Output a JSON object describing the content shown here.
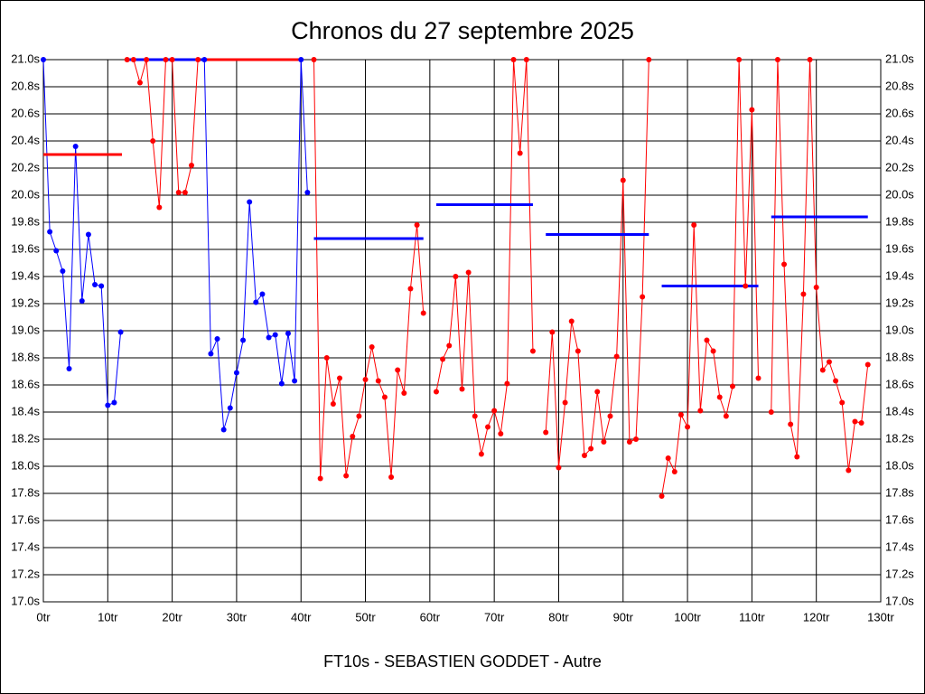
{
  "chart_data": {
    "type": "line",
    "title": "Chronos du 27 septembre 2025",
    "xlabel": "FT10s - SEBASTIEN GODDET - Autre",
    "xlim": [
      0,
      130
    ],
    "ylim": [
      17,
      21
    ],
    "grid": true,
    "xticks": [
      {
        "value": 0,
        "label": "0tr"
      },
      {
        "value": 10,
        "label": "10tr"
      },
      {
        "value": 20,
        "label": "20tr"
      },
      {
        "value": 30,
        "label": "30tr"
      },
      {
        "value": 40,
        "label": "40tr"
      },
      {
        "value": 50,
        "label": "50tr"
      },
      {
        "value": 60,
        "label": "60tr"
      },
      {
        "value": 70,
        "label": "70tr"
      },
      {
        "value": 80,
        "label": "80tr"
      },
      {
        "value": 90,
        "label": "90tr"
      },
      {
        "value": 100,
        "label": "100tr"
      },
      {
        "value": 110,
        "label": "110tr"
      },
      {
        "value": 120,
        "label": "120tr"
      },
      {
        "value": 130,
        "label": "130tr"
      }
    ],
    "yticks": [
      {
        "value": 17.0,
        "label": "17.0s"
      },
      {
        "value": 17.2,
        "label": "17.2s"
      },
      {
        "value": 17.4,
        "label": "17.4s"
      },
      {
        "value": 17.6,
        "label": "17.6s"
      },
      {
        "value": 17.8,
        "label": "17.8s"
      },
      {
        "value": 18.0,
        "label": "18.0s"
      },
      {
        "value": 18.2,
        "label": "18.2s"
      },
      {
        "value": 18.4,
        "label": "18.4s"
      },
      {
        "value": 18.6,
        "label": "18.6s"
      },
      {
        "value": 18.8,
        "label": "18.8s"
      },
      {
        "value": 19.0,
        "label": "19.0s"
      },
      {
        "value": 19.2,
        "label": "19.2s"
      },
      {
        "value": 19.4,
        "label": "19.4s"
      },
      {
        "value": 19.6,
        "label": "19.6s"
      },
      {
        "value": 19.8,
        "label": "19.8s"
      },
      {
        "value": 20.0,
        "label": "20.0s"
      },
      {
        "value": 20.2,
        "label": "20.2s"
      },
      {
        "value": 20.4,
        "label": "20.4s"
      },
      {
        "value": 20.6,
        "label": "20.6s"
      },
      {
        "value": 20.8,
        "label": "20.8s"
      },
      {
        "value": 21.0,
        "label": "21.0s"
      }
    ],
    "series": [
      {
        "color": "#0000ff",
        "x": [
          0,
          1,
          2,
          3,
          4,
          5,
          6,
          7,
          8,
          9,
          10,
          11,
          12,
          13,
          25,
          26,
          27,
          28,
          29,
          30,
          31,
          32,
          33,
          34,
          35,
          36,
          37,
          38,
          39,
          40,
          41
        ],
        "values": [
          21.0,
          19.73,
          19.59,
          19.44,
          18.72,
          20.36,
          19.22,
          19.71,
          19.34,
          19.33,
          18.45,
          18.47,
          18.99,
          null,
          21.0,
          18.83,
          18.94,
          18.27,
          18.43,
          18.69,
          18.93,
          19.95,
          19.21,
          19.27,
          18.95,
          18.97,
          18.61,
          18.98,
          18.63,
          21.0,
          20.02
        ]
      },
      {
        "color": "#ff0000",
        "x": [
          13,
          14,
          15,
          16,
          17,
          18,
          19,
          20,
          21,
          22,
          23,
          24,
          25,
          42,
          43,
          44,
          45,
          46,
          47,
          48,
          49,
          50,
          51,
          52,
          53,
          54,
          55,
          56,
          57,
          58,
          59,
          60,
          61,
          62,
          63,
          64,
          65,
          66,
          67,
          68,
          69,
          70,
          71,
          72,
          73,
          74,
          75,
          76,
          77,
          78,
          79,
          80,
          81,
          82,
          83,
          84,
          85,
          86,
          87,
          88,
          89,
          90,
          91,
          92,
          93,
          94,
          95,
          96,
          97,
          98,
          99,
          100,
          101,
          102,
          103,
          104,
          105,
          106,
          107,
          108,
          109,
          110,
          111,
          112,
          113,
          114,
          115,
          116,
          117,
          118,
          119,
          120,
          121,
          122,
          123,
          124,
          125,
          126,
          127,
          128
        ],
        "values": [
          21.0,
          21.0,
          20.83,
          21.0,
          20.4,
          19.91,
          21.0,
          21.0,
          20.02,
          20.02,
          20.22,
          21.0,
          null,
          21.0,
          17.91,
          18.8,
          18.46,
          18.65,
          17.93,
          18.22,
          18.37,
          18.64,
          18.88,
          18.63,
          18.51,
          17.92,
          18.71,
          18.54,
          19.31,
          19.78,
          19.13,
          null,
          18.55,
          18.79,
          18.89,
          19.4,
          18.57,
          19.43,
          18.37,
          18.09,
          18.29,
          18.41,
          18.24,
          18.61,
          21.0,
          20.31,
          21.0,
          18.85,
          null,
          18.25,
          18.99,
          17.99,
          18.47,
          19.07,
          18.85,
          18.08,
          18.13,
          18.55,
          18.18,
          18.37,
          18.81,
          20.11,
          18.18,
          18.2,
          19.25,
          21.0,
          null,
          17.78,
          18.06,
          17.96,
          18.38,
          18.29,
          19.78,
          18.41,
          18.93,
          18.85,
          18.51,
          18.37,
          18.59,
          21.0,
          19.33,
          20.63,
          18.65,
          null,
          18.4,
          21.0,
          19.49,
          18.31,
          18.07,
          19.27,
          21.0,
          19.32,
          18.71,
          18.77,
          18.63,
          18.47,
          17.97,
          18.33,
          18.32,
          18.75
        ]
      }
    ],
    "averages": [
      {
        "color": "#ff0000",
        "x": [
          0,
          12.2
        ],
        "value": 20.3
      },
      {
        "color": "#0000ff",
        "x": [
          13,
          25
        ],
        "value": 21.0
      },
      {
        "color": "#ff0000",
        "x": [
          25,
          40
        ],
        "value": 21.0
      },
      {
        "color": "#0000ff",
        "x": [
          42,
          59
        ],
        "value": 19.68
      },
      {
        "color": "#0000ff",
        "x": [
          61,
          76
        ],
        "value": 19.93
      },
      {
        "color": "#0000ff",
        "x": [
          78,
          94
        ],
        "value": 19.71
      },
      {
        "color": "#0000ff",
        "x": [
          96,
          111
        ],
        "value": 19.33
      },
      {
        "color": "#0000ff",
        "x": [
          113,
          128
        ],
        "value": 19.84
      }
    ]
  }
}
